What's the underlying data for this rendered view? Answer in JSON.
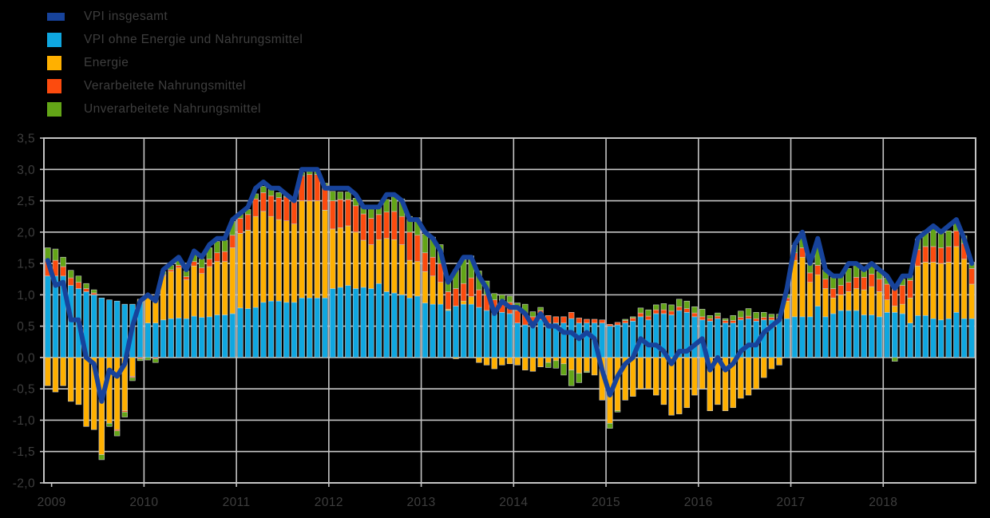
{
  "chart_data": {
    "type": "bar",
    "subtype": "stacked-monthly-bars-with-line-overlay",
    "title": "",
    "background": "#000000",
    "grid_color": "#c4c4c4",
    "text_color": "#3e3e3e",
    "ylim": [
      -2.0,
      3.5
    ],
    "ytick_step": 0.5,
    "y_tick_labels": [
      "3,5",
      "3,0",
      "2,5",
      "2,0",
      "1,5",
      "1,0",
      "0,5",
      "0,0",
      "-0,5",
      "-1,0",
      "-1,5",
      "-2,0"
    ],
    "x_tick_labels": [
      "2009",
      "2010",
      "2011",
      "2012",
      "2013",
      "2014",
      "2015",
      "2016",
      "2017",
      "2018"
    ],
    "start_month": "2008-12",
    "months_total": 121,
    "legend_position": "top-left",
    "legend": [
      {
        "label": "VPI insgesamt",
        "color": "#17439b",
        "swatch": "line"
      },
      {
        "label": "VPI ohne Energie und Nahrungsmittel",
        "color": "#0fa7e0",
        "swatch": "square"
      },
      {
        "label": "Energie",
        "color": "#ffb000",
        "swatch": "square"
      },
      {
        "label": "Verarbeitete Nahrungsmittel",
        "color": "#fc4b0e",
        "swatch": "square"
      },
      {
        "label": "Unverarbeitete Nahrungsmittel",
        "color": "#63a517",
        "swatch": "square"
      }
    ],
    "series": [
      {
        "name": "VPI ohne Energie und Nahrungsmittel",
        "color": "#0fa7e0",
        "values": [
          1.3,
          1.3,
          1.3,
          1.15,
          1.1,
          1.05,
          1.0,
          0.95,
          0.92,
          0.9,
          0.85,
          0.85,
          0.88,
          0.55,
          0.55,
          0.6,
          0.62,
          0.63,
          0.62,
          0.66,
          0.64,
          0.65,
          0.68,
          0.68,
          0.7,
          0.79,
          0.78,
          0.8,
          0.88,
          0.9,
          0.9,
          0.88,
          0.88,
          0.95,
          0.95,
          0.95,
          0.95,
          1.1,
          1.12,
          1.15,
          1.1,
          1.12,
          1.1,
          1.18,
          1.05,
          1.03,
          1.0,
          0.95,
          0.98,
          0.87,
          0.85,
          0.85,
          0.75,
          0.82,
          0.85,
          0.85,
          0.8,
          0.75,
          0.7,
          0.72,
          0.7,
          0.55,
          0.52,
          0.5,
          0.6,
          0.55,
          0.55,
          0.55,
          0.62,
          0.55,
          0.55,
          0.55,
          0.55,
          0.5,
          0.52,
          0.55,
          0.58,
          0.65,
          0.6,
          0.7,
          0.7,
          0.68,
          0.75,
          0.72,
          0.65,
          0.6,
          0.58,
          0.62,
          0.55,
          0.55,
          0.6,
          0.62,
          0.58,
          0.6,
          0.6,
          0.6,
          0.62,
          0.65,
          0.65,
          0.65,
          0.82,
          0.65,
          0.7,
          0.75,
          0.75,
          0.75,
          0.68,
          0.68,
          0.65,
          0.72,
          0.72,
          0.7,
          0.55,
          0.67,
          0.67,
          0.62,
          0.6,
          0.62,
          0.72,
          0.62,
          0.62
        ]
      },
      {
        "name": "Energie",
        "color": "#ffb000",
        "values": [
          -0.45,
          -0.55,
          -0.45,
          -0.7,
          -0.75,
          -1.1,
          -1.15,
          -1.55,
          -1.05,
          -1.15,
          -0.85,
          -0.3,
          0.05,
          0.45,
          0.42,
          0.7,
          0.75,
          0.8,
          0.62,
          0.8,
          0.7,
          0.8,
          0.85,
          0.85,
          1.05,
          1.19,
          1.25,
          1.45,
          1.45,
          1.35,
          1.3,
          1.3,
          1.25,
          1.55,
          1.55,
          1.55,
          1.4,
          0.95,
          0.95,
          0.95,
          0.9,
          0.75,
          0.7,
          0.7,
          0.85,
          0.85,
          0.8,
          0.6,
          0.55,
          0.5,
          0.45,
          0.35,
          0.02,
          -0.02,
          0.05,
          0.12,
          -0.08,
          -0.12,
          -0.18,
          -0.12,
          -0.1,
          -0.12,
          -0.2,
          -0.22,
          -0.15,
          -0.08,
          -0.05,
          -0.1,
          -0.2,
          -0.25,
          -0.22,
          -0.28,
          -0.68,
          -1.05,
          -0.85,
          -0.68,
          -0.62,
          -0.5,
          -0.5,
          -0.6,
          -0.75,
          -0.92,
          -0.9,
          -0.8,
          -0.6,
          -0.5,
          -0.85,
          -0.75,
          -0.85,
          -0.8,
          -0.65,
          -0.6,
          -0.5,
          -0.32,
          -0.18,
          -0.12,
          0.28,
          0.9,
          0.95,
          0.55,
          0.5,
          0.45,
          0.25,
          0.25,
          0.3,
          0.35,
          0.4,
          0.45,
          0.4,
          0.2,
          0.1,
          0.15,
          0.4,
          0.79,
          0.85,
          0.9,
          0.9,
          0.9,
          1.05,
          0.95,
          0.55
        ]
      },
      {
        "name": "Verarbeitete Nahrungsmittel",
        "color": "#fc4b0e",
        "values": [
          0.25,
          0.25,
          0.15,
          0.12,
          0.1,
          0.05,
          0.03,
          0.0,
          0.0,
          -0.02,
          -0.02,
          -0.02,
          -0.02,
          0.0,
          -0.02,
          0.02,
          0.03,
          0.04,
          0.05,
          0.07,
          0.09,
          0.12,
          0.14,
          0.16,
          0.2,
          0.24,
          0.25,
          0.28,
          0.3,
          0.33,
          0.35,
          0.38,
          0.38,
          0.4,
          0.42,
          0.42,
          0.4,
          0.45,
          0.45,
          0.42,
          0.42,
          0.42,
          0.42,
          0.4,
          0.42,
          0.45,
          0.45,
          0.45,
          0.42,
          0.3,
          0.3,
          0.3,
          0.28,
          0.28,
          0.28,
          0.3,
          0.28,
          0.25,
          0.22,
          0.2,
          0.18,
          0.2,
          0.18,
          0.15,
          0.15,
          0.12,
          0.1,
          0.1,
          0.1,
          0.08,
          0.06,
          0.06,
          0.05,
          0.03,
          0.04,
          0.04,
          0.05,
          0.06,
          0.06,
          0.06,
          0.06,
          0.06,
          0.06,
          0.06,
          0.06,
          0.05,
          0.04,
          0.04,
          0.04,
          0.04,
          0.04,
          0.04,
          0.04,
          0.04,
          0.04,
          0.04,
          0.05,
          0.12,
          0.15,
          0.15,
          0.15,
          0.15,
          0.15,
          0.15,
          0.15,
          0.18,
          0.2,
          0.2,
          0.2,
          0.25,
          0.28,
          0.3,
          0.28,
          0.26,
          0.25,
          0.25,
          0.25,
          0.25,
          0.25,
          0.25,
          0.25
        ]
      },
      {
        "name": "Unverarbeitete Nahrungsmittel",
        "color": "#63a517",
        "values": [
          0.2,
          0.18,
          0.15,
          0.12,
          0.1,
          0.08,
          0.05,
          -0.08,
          -0.05,
          -0.08,
          -0.08,
          -0.05,
          -0.03,
          -0.04,
          -0.06,
          0.05,
          0.07,
          0.08,
          0.09,
          0.12,
          0.14,
          0.18,
          0.18,
          0.18,
          0.22,
          0.09,
          0.08,
          0.08,
          0.1,
          0.1,
          0.08,
          0.02,
          0.02,
          0.05,
          0.05,
          0.05,
          0.03,
          0.15,
          0.12,
          0.12,
          0.12,
          0.12,
          0.15,
          0.12,
          0.2,
          0.25,
          0.28,
          0.25,
          0.28,
          0.3,
          0.32,
          0.3,
          0.22,
          0.3,
          0.38,
          0.35,
          0.3,
          0.22,
          0.1,
          0.08,
          0.1,
          0.12,
          0.15,
          0.08,
          0.05,
          -0.08,
          -0.12,
          -0.18,
          -0.25,
          -0.15,
          -0.02,
          0.0,
          0.0,
          -0.08,
          -0.02,
          0.02,
          0.02,
          0.08,
          0.1,
          0.08,
          0.1,
          0.1,
          0.12,
          0.12,
          0.1,
          0.12,
          0.05,
          0.05,
          0.03,
          0.08,
          0.1,
          0.12,
          0.1,
          0.08,
          0.05,
          0.05,
          0.05,
          0.12,
          0.22,
          0.15,
          0.28,
          0.15,
          0.18,
          0.15,
          0.22,
          0.2,
          0.15,
          0.15,
          0.12,
          0.1,
          -0.06,
          0.1,
          0.08,
          0.17,
          0.25,
          0.3,
          0.25,
          0.25,
          0.15,
          0.12,
          0.1
        ]
      }
    ],
    "line_series": {
      "name": "VPI insgesamt",
      "color": "#17439b",
      "width": 6,
      "values": [
        1.55,
        1.15,
        1.2,
        0.6,
        0.6,
        0.0,
        -0.1,
        -0.7,
        -0.2,
        -0.3,
        -0.1,
        0.5,
        0.9,
        1.0,
        0.9,
        1.4,
        1.5,
        1.6,
        1.4,
        1.7,
        1.6,
        1.8,
        1.9,
        1.9,
        2.2,
        2.3,
        2.4,
        2.7,
        2.8,
        2.7,
        2.7,
        2.6,
        2.5,
        3.0,
        3.0,
        3.0,
        2.7,
        2.7,
        2.7,
        2.7,
        2.6,
        2.4,
        2.4,
        2.4,
        2.6,
        2.6,
        2.5,
        2.2,
        2.2,
        2.0,
        1.9,
        1.7,
        1.2,
        1.4,
        1.6,
        1.6,
        1.3,
        1.1,
        0.7,
        0.9,
        0.8,
        0.8,
        0.7,
        0.5,
        0.7,
        0.5,
        0.5,
        0.4,
        0.4,
        0.3,
        0.4,
        0.3,
        -0.2,
        -0.6,
        -0.3,
        -0.1,
        0.0,
        0.3,
        0.2,
        0.2,
        0.1,
        -0.1,
        0.1,
        0.1,
        0.2,
        0.3,
        -0.2,
        0.0,
        -0.2,
        -0.1,
        0.1,
        0.2,
        0.2,
        0.4,
        0.5,
        0.6,
        1.1,
        1.8,
        2.0,
        1.5,
        1.9,
        1.4,
        1.3,
        1.3,
        1.5,
        1.5,
        1.4,
        1.5,
        1.4,
        1.3,
        1.1,
        1.3,
        1.3,
        1.9,
        2.0,
        2.1,
        2.0,
        2.1,
        2.2,
        1.9,
        1.5
      ]
    }
  }
}
